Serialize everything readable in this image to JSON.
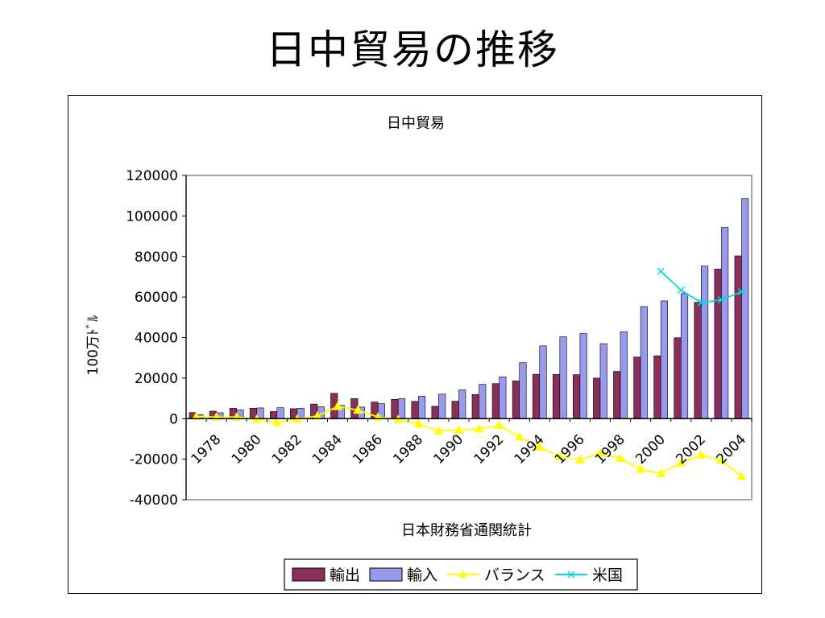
{
  "slide": {
    "title": "日中貿易の推移"
  },
  "chart_data": {
    "type": "bar",
    "title": "日中貿易",
    "ylabel": "100万ﾄﾞﾙ",
    "xlabel": "日本財務省通関統計",
    "ylim": [
      -40000,
      120000
    ],
    "yticks": [
      120000,
      100000,
      80000,
      60000,
      40000,
      20000,
      0,
      -20000,
      -40000
    ],
    "years": [
      1978,
      1979,
      1980,
      1981,
      1982,
      1983,
      1984,
      1985,
      1986,
      1987,
      1988,
      1989,
      1990,
      1991,
      1992,
      1993,
      1994,
      1995,
      1996,
      1997,
      1998,
      1999,
      2000,
      2001,
      2002,
      2003,
      2004,
      2005
    ],
    "xtick_labels": [
      "1978",
      "1980",
      "1982",
      "1984",
      "1986",
      "1988",
      "1990",
      "1992",
      "1994",
      "1996",
      "1998",
      "2000",
      "2002",
      "2004"
    ],
    "legend_position": "bottom",
    "grid": false,
    "series": [
      {
        "name": "輸出",
        "kind": "bar",
        "color": "#8b2e5a",
        "values": [
          3000,
          3700,
          5100,
          5100,
          3500,
          4900,
          7200,
          12500,
          9900,
          8200,
          9500,
          8500,
          6100,
          8600,
          11900,
          17300,
          18600,
          21900,
          21800,
          21700,
          20000,
          23300,
          30400,
          31000,
          39900,
          57400,
          73800,
          80300
        ]
      },
      {
        "name": "輸入",
        "kind": "bar",
        "color": "#9999ee",
        "values": [
          2000,
          2900,
          4300,
          5300,
          5400,
          5100,
          5900,
          6500,
          5700,
          7400,
          9900,
          11100,
          12100,
          14200,
          16900,
          20600,
          27600,
          35900,
          40400,
          42000,
          37000,
          42900,
          55300,
          58100,
          61700,
          75300,
          94400,
          108600
        ]
      },
      {
        "name": "バランス",
        "kind": "line",
        "color": "#ffff00",
        "marker": "triangle",
        "values": [
          1000,
          800,
          800,
          -200,
          -1900,
          -200,
          1300,
          6000,
          4200,
          800,
          -400,
          -2600,
          -6000,
          -5600,
          -5000,
          -3300,
          -9000,
          -14000,
          -18600,
          -20300,
          -17000,
          -19600,
          -24900,
          -27100,
          -21800,
          -17900,
          -20600,
          -28300
        ]
      },
      {
        "name": "米国",
        "kind": "line",
        "color": "#00dddd",
        "marker": "x",
        "values": [
          null,
          null,
          null,
          null,
          null,
          null,
          null,
          null,
          null,
          null,
          null,
          null,
          null,
          null,
          null,
          null,
          null,
          null,
          null,
          null,
          null,
          null,
          null,
          72700,
          63400,
          57300,
          58600,
          62600
        ]
      }
    ]
  }
}
